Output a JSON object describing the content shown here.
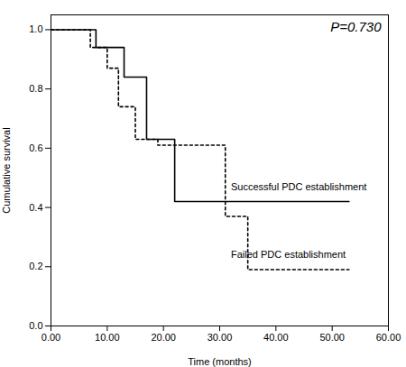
{
  "chart_data": {
    "type": "line",
    "x_label": "Time (months)",
    "y_label": "Cumulative survival",
    "series": [
      {
        "x": [
          0,
          8,
          8,
          13,
          13,
          17,
          17,
          22,
          22,
          53
        ],
        "values": [
          1.0,
          1.0,
          0.94,
          0.94,
          0.84,
          0.84,
          0.63,
          0.63,
          0.42,
          0.42
        ],
        "color": "#000000",
        "line_style": "solid"
      },
      {
        "x": [
          0,
          7,
          7,
          10,
          10,
          12,
          12,
          15,
          15,
          19,
          19,
          31,
          31,
          35,
          35,
          53
        ],
        "values": [
          1.0,
          1.0,
          0.94,
          0.94,
          0.87,
          0.87,
          0.74,
          0.74,
          0.63,
          0.63,
          0.61,
          0.61,
          0.37,
          0.37,
          0.19,
          0.19
        ],
        "color": "#000000",
        "line_style": "dotted"
      }
    ],
    "annotations": [
      {
        "text": "P=0.730"
      },
      {
        "text": "Successful PDC establishment",
        "x": 32,
        "y": 0.47
      },
      {
        "text": "Failed PDC establishment",
        "x": 32,
        "y": 0.24
      }
    ],
    "xlim": [
      0.0,
      60.0
    ],
    "ylim": [
      0.0,
      1.05
    ],
    "xticks": [
      {
        "value": 0,
        "label": "0.00"
      },
      {
        "value": 10,
        "label": "10.00"
      },
      {
        "value": 20,
        "label": "20.00"
      },
      {
        "value": 30,
        "label": "30.00"
      },
      {
        "value": 40,
        "label": "40.00"
      },
      {
        "value": 50,
        "label": "50.00"
      },
      {
        "value": 60,
        "label": "60.00"
      }
    ],
    "yticks": [
      {
        "value": 0,
        "label": "0.0"
      },
      0.2,
      0.4,
      0.6,
      0.8,
      {
        "value": 1,
        "label": "1.0"
      }
    ],
    "grid": false
  }
}
